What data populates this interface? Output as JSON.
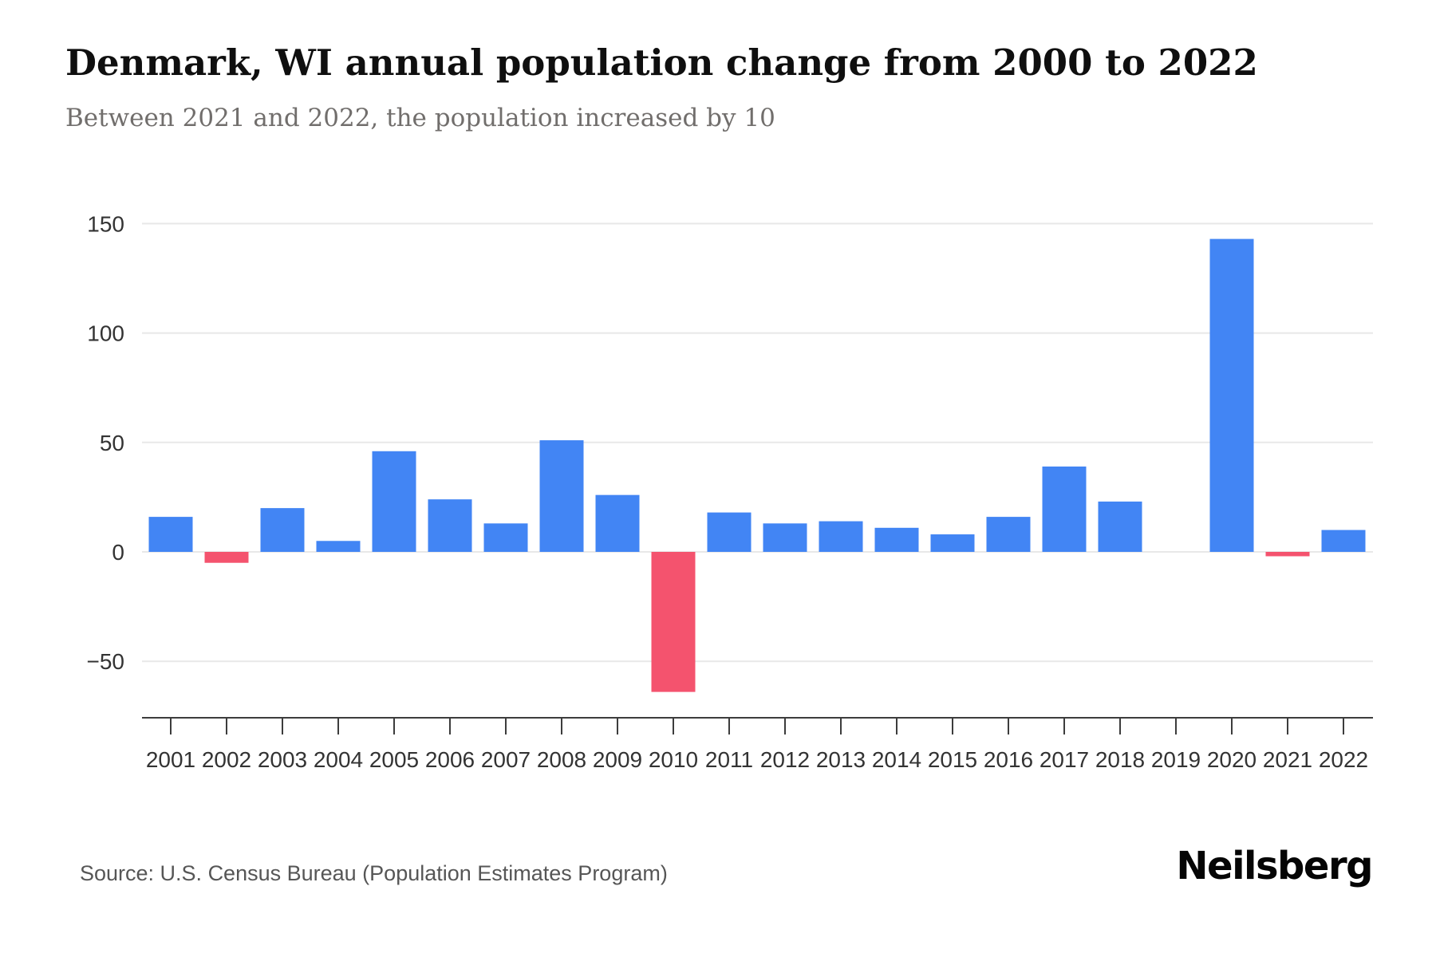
{
  "header": {
    "title": "Denmark, WI annual population change from 2000 to 2022",
    "subtitle": "Between 2021 and 2022, the population increased by 10"
  },
  "footer": {
    "source": "Source: U.S. Census Bureau (Population Estimates Program)",
    "brand": "Neilsberg"
  },
  "chart_data": {
    "type": "bar",
    "title": "Denmark, WI annual population change from 2000 to 2022",
    "xlabel": "",
    "ylabel": "",
    "categories": [
      "2001",
      "2002",
      "2003",
      "2004",
      "2005",
      "2006",
      "2007",
      "2008",
      "2009",
      "2010",
      "2011",
      "2012",
      "2013",
      "2014",
      "2015",
      "2016",
      "2017",
      "2018",
      "2019",
      "2020",
      "2021",
      "2022"
    ],
    "values": [
      16,
      -5,
      20,
      5,
      46,
      24,
      13,
      51,
      26,
      -64,
      18,
      13,
      14,
      11,
      8,
      16,
      39,
      23,
      0,
      143,
      -2,
      10
    ],
    "ylim": [
      -75,
      165
    ],
    "ytick_values": [
      150,
      100,
      50,
      0,
      -50
    ],
    "ytick_labels": [
      "150",
      "100",
      "50",
      "0",
      "−50"
    ],
    "grid": "horizontal gridlines only",
    "legend": "none",
    "colors": {
      "positive": "#4285f4",
      "negative": "#f4536e",
      "gridline": "#e8e8e8",
      "axis": "#3c3c3c"
    }
  }
}
